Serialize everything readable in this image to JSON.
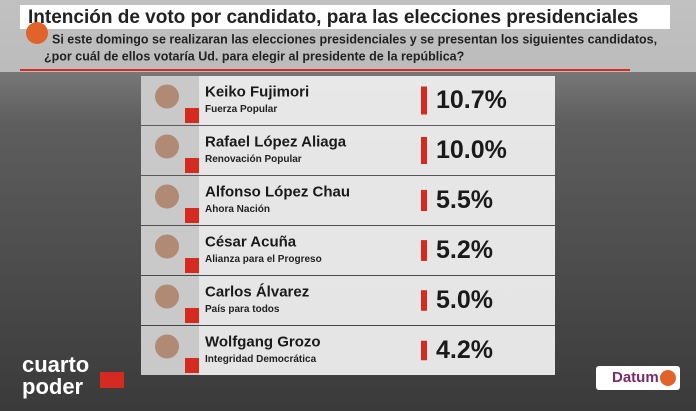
{
  "chart_data": {
    "type": "bar",
    "title": "Intención de voto por candidato, para las elecciones presidenciales",
    "question": [
      "Si este domingo se realizaran las elecciones presidenciales y se presentan los siguientes candidatos,",
      "¿por cuál de ellos votaría Ud. para elegir al presidente de la república?"
    ],
    "categories": [
      "Keiko Fujimori",
      "Rafael López Aliaga",
      "Alfonso López Chau",
      "César Acuña",
      "Carlos Álvarez",
      "Wolfgang Grozo"
    ],
    "parties": [
      "Fuerza Popular",
      "Renovación Popular",
      "Ahora Nación",
      "Alianza para el Progreso",
      "País para todos",
      "Integridad Democrática"
    ],
    "values": [
      10.7,
      10.0,
      5.5,
      5.2,
      5.0,
      4.2
    ],
    "value_labels": [
      "10.7%",
      "10.0%",
      "5.5%",
      "5.2%",
      "5.0%",
      "4.2%"
    ],
    "color": "#d42a20",
    "brand": [
      "cuarto",
      "poder"
    ],
    "source": "Datum"
  }
}
